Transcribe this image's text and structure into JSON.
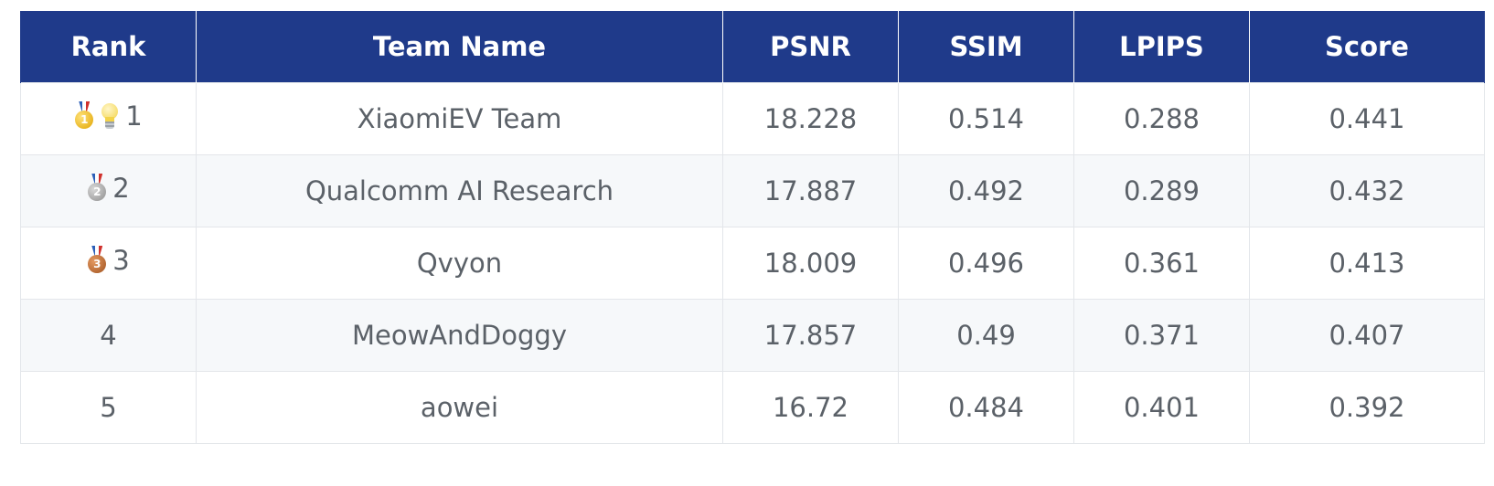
{
  "table": {
    "headers": {
      "rank": "Rank",
      "team": "Team Name",
      "psnr": "PSNR",
      "ssim": "SSIM",
      "lpips": "LPIPS",
      "score": "Score"
    },
    "rows": [
      {
        "rank": "1",
        "medal": "gold-medal-icon",
        "medal_number": "1",
        "extra_icon": "lightbulb-icon",
        "team": "XiaomiEV Team",
        "psnr": "18.228",
        "ssim": "0.514",
        "lpips": "0.288",
        "score": "0.441"
      },
      {
        "rank": "2",
        "medal": "silver-medal-icon",
        "medal_number": "2",
        "team": "Qualcomm AI Research",
        "psnr": "17.887",
        "ssim": "0.492",
        "lpips": "0.289",
        "score": "0.432"
      },
      {
        "rank": "3",
        "medal": "bronze-medal-icon",
        "medal_number": "3",
        "team": "Qvyon",
        "psnr": "18.009",
        "ssim": "0.496",
        "lpips": "0.361",
        "score": "0.413"
      },
      {
        "rank": "4",
        "team": "MeowAndDoggy",
        "psnr": "17.857",
        "ssim": "0.49",
        "lpips": "0.371",
        "score": "0.407"
      },
      {
        "rank": "5",
        "team": "aowei",
        "psnr": "16.72",
        "ssim": "0.484",
        "lpips": "0.401",
        "score": "0.392"
      }
    ]
  },
  "colors": {
    "header_bg": "#1f3a8a",
    "header_text": "#ffffff",
    "cell_text": "#5b6168",
    "row_alt_bg": "#f6f8fa",
    "border": "#e3e6ea"
  }
}
